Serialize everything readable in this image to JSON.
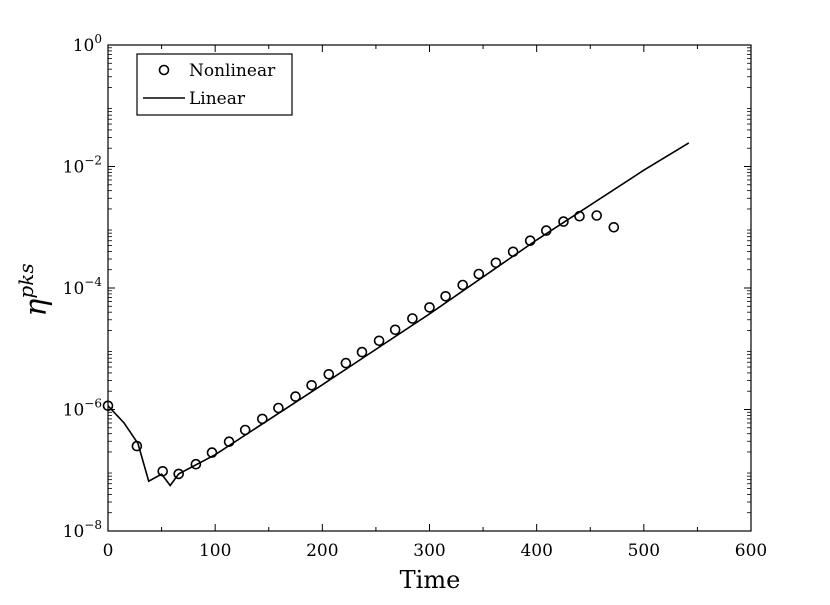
{
  "chart_data": {
    "type": "line",
    "title": "",
    "xlabel": "Time",
    "ylabel": "η",
    "ylabel_superscript": "pks",
    "xscale": "linear",
    "yscale": "log",
    "xlim": [
      0,
      600
    ],
    "ylim": [
      1e-08,
      1
    ],
    "grid": false,
    "legend_position": "top-left",
    "x_ticks": [
      0,
      100,
      200,
      300,
      400,
      500,
      600
    ],
    "x_tick_labels": [
      "0",
      "100",
      "200",
      "300",
      "400",
      "500",
      "600"
    ],
    "y_ticks": [
      1e-08,
      1e-06,
      0.0001,
      0.01,
      1
    ],
    "y_tick_labels": [
      {
        "base": "10",
        "exp": "−8"
      },
      {
        "base": "10",
        "exp": "−6"
      },
      {
        "base": "10",
        "exp": "−4"
      },
      {
        "base": "10",
        "exp": "−2"
      },
      {
        "base": "10",
        "exp": "0"
      }
    ],
    "series": [
      {
        "name": "Nonlinear",
        "style": "markers",
        "marker": "circle",
        "color": "#000000",
        "x": [
          0,
          27,
          51,
          66,
          82,
          97,
          113,
          128,
          144,
          159,
          175,
          190,
          206,
          222,
          237,
          253,
          268,
          284,
          300,
          315,
          331,
          346,
          362,
          378,
          394,
          409,
          425,
          440,
          456,
          472
        ],
        "y": [
          1.15e-06,
          2.5e-07,
          9.6e-08,
          8.7e-08,
          1.26e-07,
          1.95e-07,
          2.95e-07,
          4.6e-07,
          7e-07,
          1.06e-06,
          1.63e-06,
          2.5e-06,
          3.8e-06,
          5.8e-06,
          8.8e-06,
          1.35e-05,
          2.05e-05,
          3.15e-05,
          4.8e-05,
          7.3e-05,
          0.000112,
          0.00017,
          0.00026,
          0.000395,
          0.0006,
          0.00088,
          0.00124,
          0.00152,
          0.00156,
          0.001
        ]
      },
      {
        "name": "Linear",
        "style": "line",
        "color": "#000000",
        "x": [
          0,
          15,
          28,
          38,
          50,
          58,
          66,
          100,
          200,
          300,
          400,
          500,
          542
        ],
        "y": [
          1.15e-06,
          6e-07,
          2.75e-07,
          6.6e-08,
          8.6e-08,
          5.6e-08,
          8.7e-08,
          1.8e-07,
          2.55e-06,
          3.75e-05,
          0.00062,
          0.0087,
          0.0245
        ]
      }
    ]
  }
}
